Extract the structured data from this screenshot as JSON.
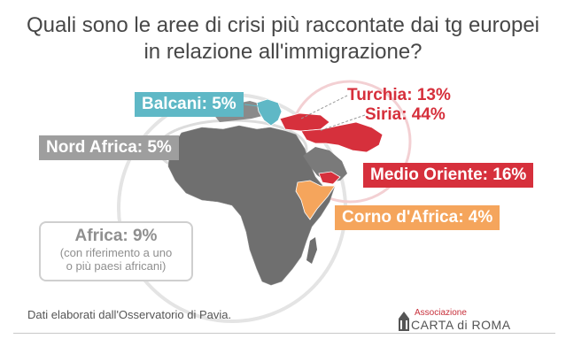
{
  "title": {
    "line1": "Quali sono le aree di crisi più raccontate dai tg europei",
    "line2": "in relazione all'immigrazione?"
  },
  "labels": {
    "balcani": "Balcani: 5%",
    "turchia": "Turchia: 13%",
    "siria": "Siria: 44%",
    "nord_africa": "Nord Africa: 5%",
    "medio_oriente": "Medio Oriente: 16%",
    "corno_africa": "Corno d'Africa: 4%",
    "africa": "Africa: 9%",
    "africa_note_1": "(con riferimento a uno",
    "africa_note_2": "o più paesi africani)"
  },
  "footer": {
    "source": "Dati elaborati dall'Osservatorio di Pavia.",
    "logo_sub": "Associazione",
    "logo_main": "CARTA di ROMA"
  },
  "colors": {
    "balcani": "#5fb8c6",
    "crisis_red": "#d6303c",
    "nord_africa": "#9e9e9e",
    "corno_africa": "#f5a55c",
    "land": "#6e6e6e",
    "ring": "#e3e3e3"
  }
}
